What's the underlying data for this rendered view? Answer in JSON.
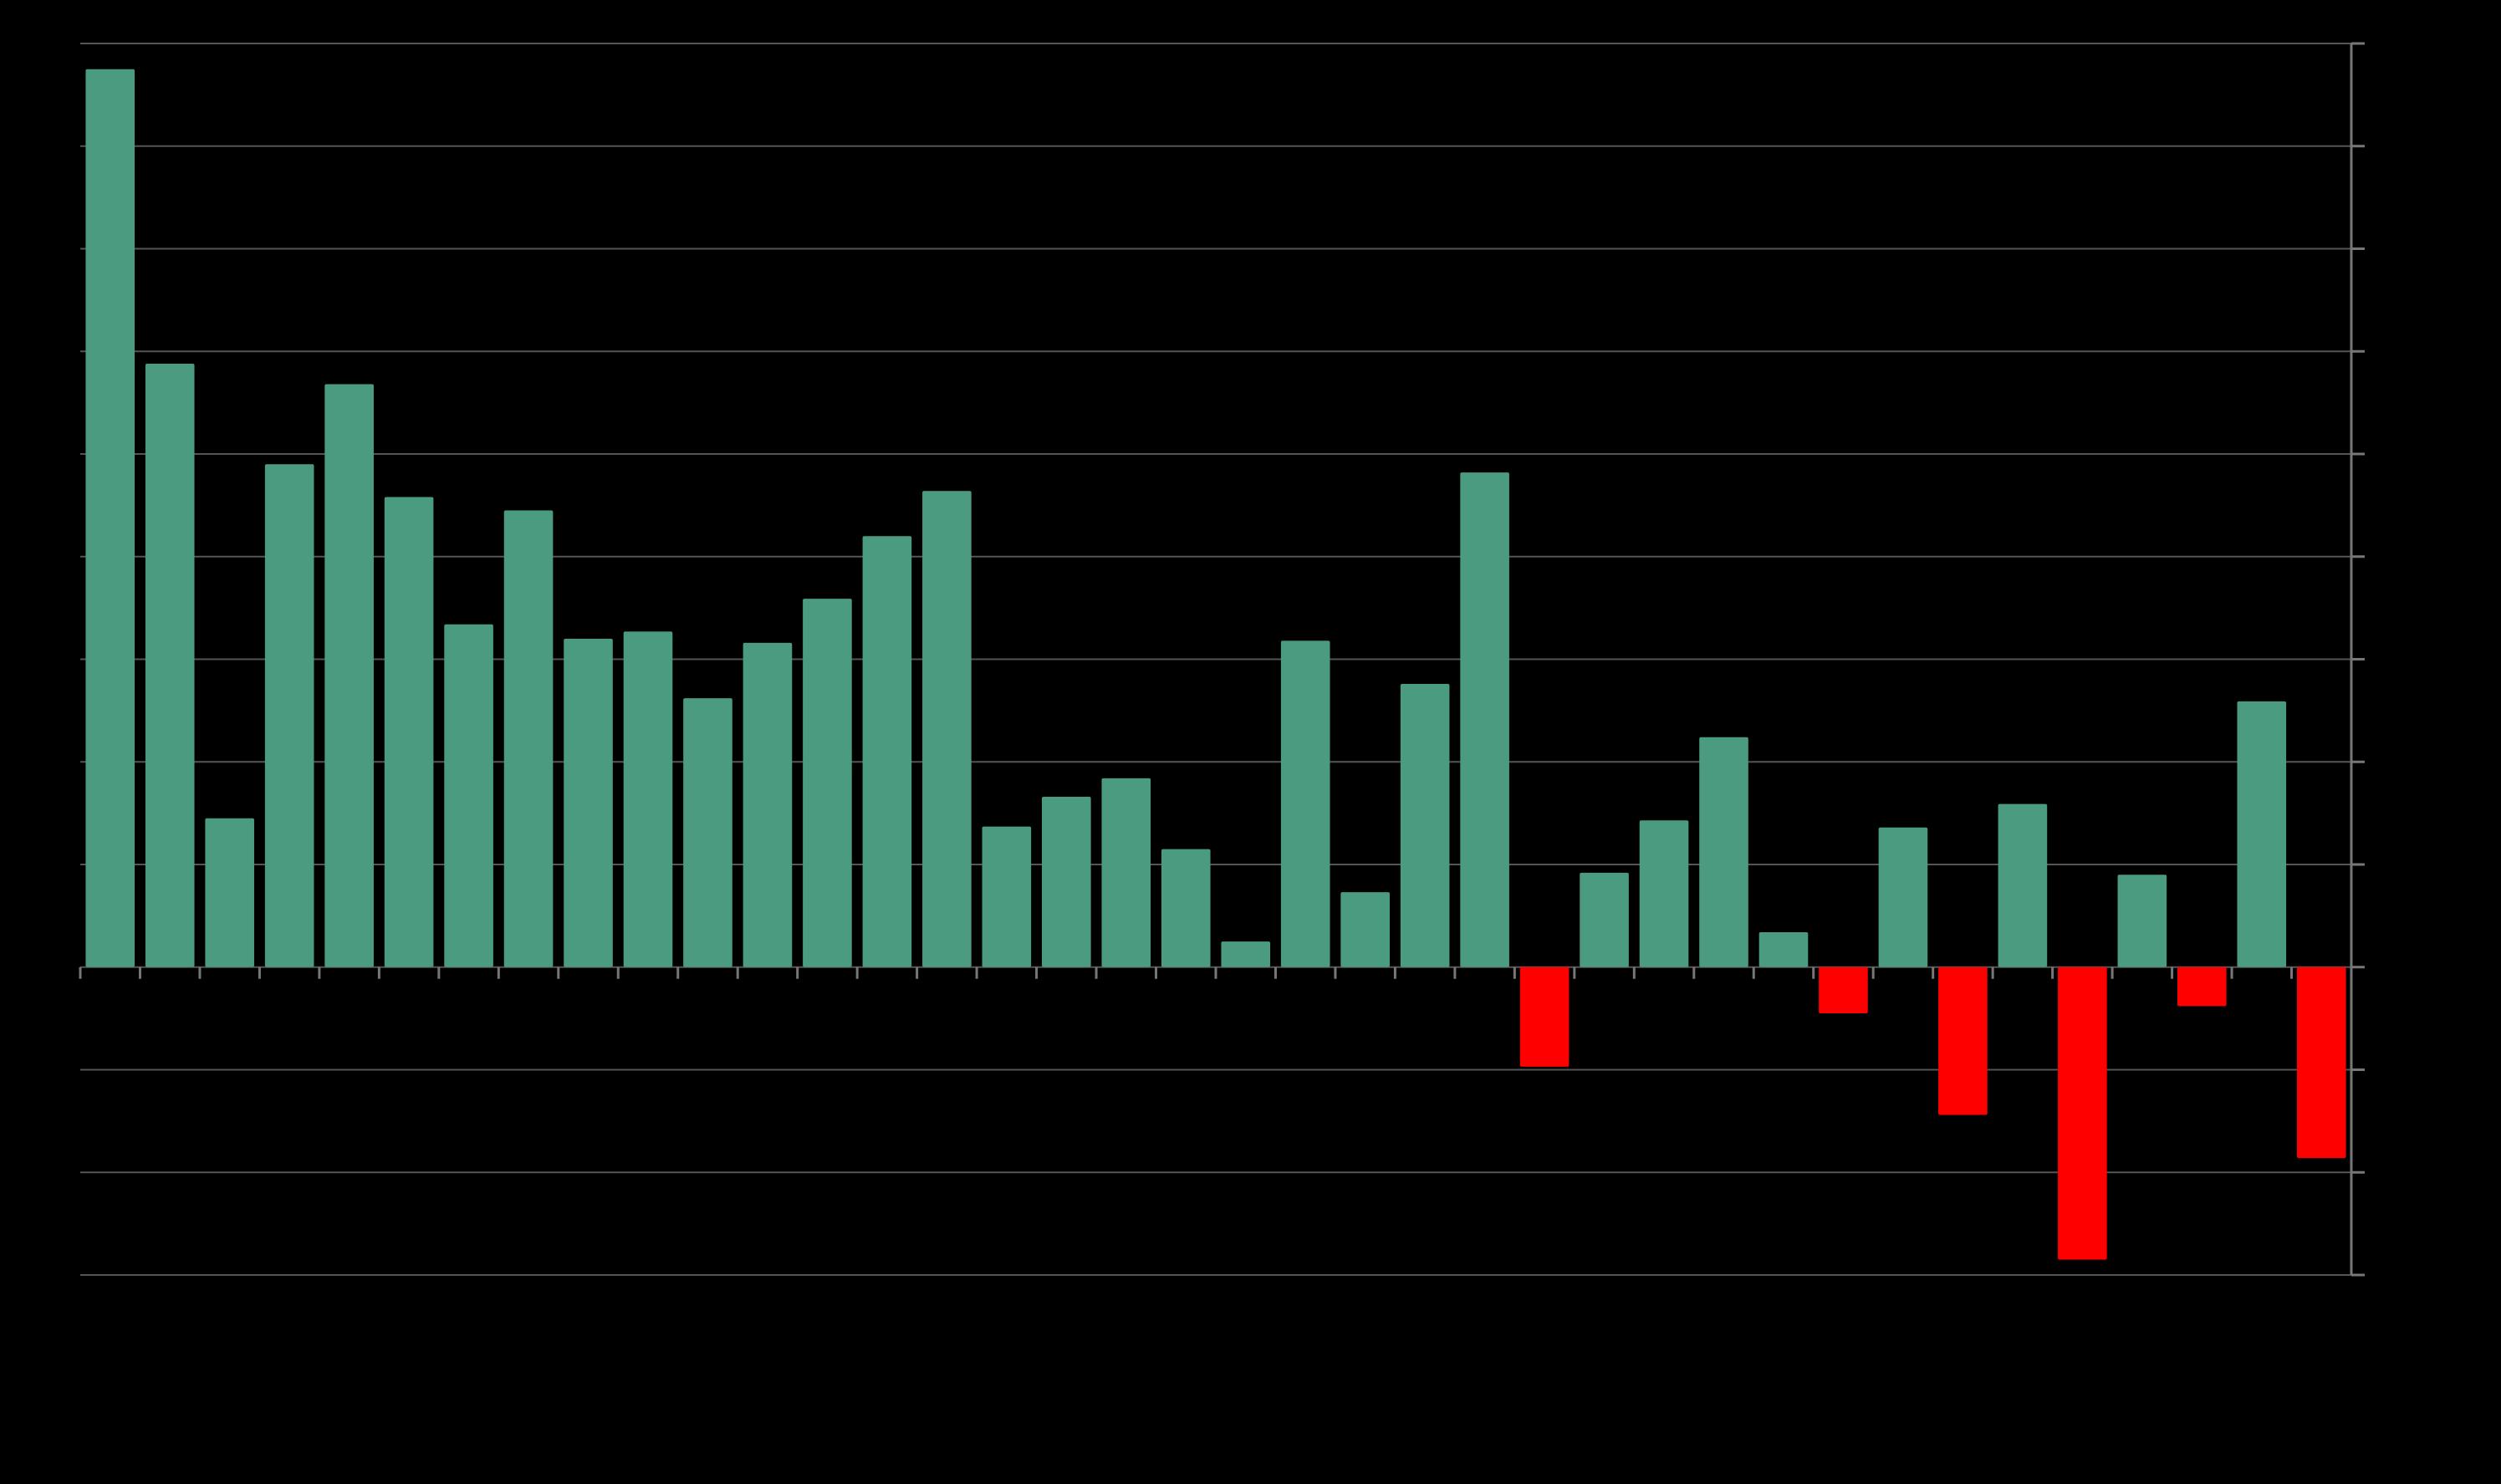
{
  "chart_data": {
    "type": "bar",
    "title": "",
    "xlabel": "",
    "ylabel": "",
    "ylim": [
      -3,
      9
    ],
    "y_major_step": 1,
    "grid": true,
    "legend": "none",
    "values": [
      8.75,
      5.88,
      1.45,
      4.9,
      5.68,
      4.58,
      3.34,
      4.45,
      3.2,
      3.27,
      2.62,
      3.16,
      3.59,
      4.2,
      4.64,
      1.37,
      1.66,
      1.84,
      1.15,
      0.25,
      3.18,
      0.73,
      2.76,
      4.82,
      -0.97,
      0.92,
      1.43,
      2.24,
      0.34,
      -0.45,
      1.36,
      -1.44,
      1.59,
      -2.85,
      0.9,
      -0.38,
      2.59,
      -1.86
    ],
    "colors": {
      "positive": "#4a9b7f",
      "negative": "#ff0000",
      "background": "#000000",
      "grid": "#555555",
      "axis": "#777777"
    }
  }
}
